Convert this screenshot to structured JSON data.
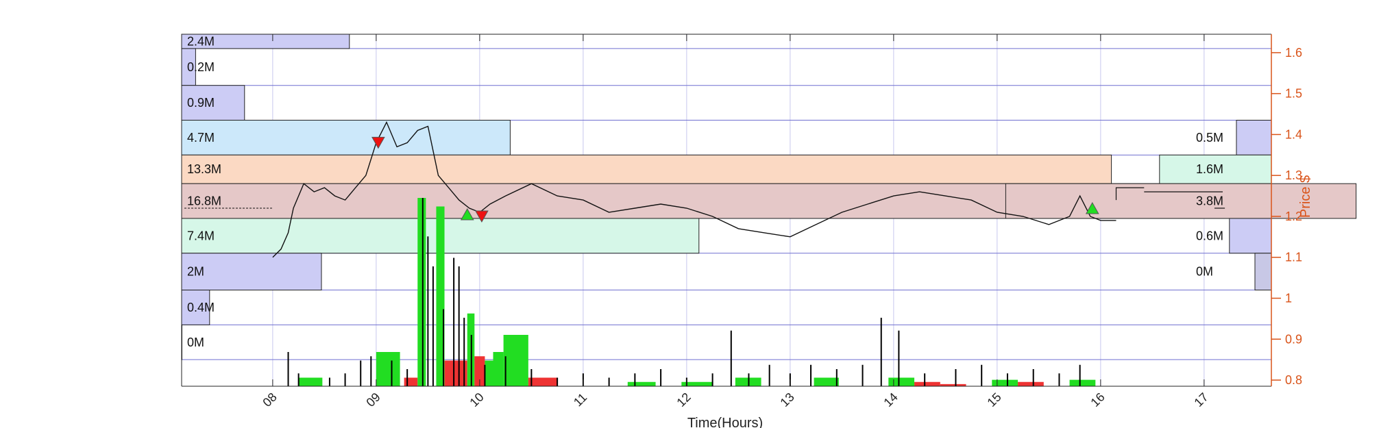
{
  "chart_data": {
    "type": "candlestick-volume-profile",
    "xlabel": "Time(Hours)",
    "ylabel": "Price $",
    "x_range": [
      7.12,
      17.65
    ],
    "y_range": [
      0.785,
      1.645
    ],
    "x_ticks": [
      "08",
      "09",
      "10",
      "11",
      "12",
      "13",
      "14",
      "15",
      "16",
      "17"
    ],
    "y_ticks": [
      "0.8",
      "0.9",
      "1",
      "1.1",
      "1.2",
      "1.3",
      "1.4",
      "1.5",
      "1.6"
    ],
    "colors": {
      "axis_right": "#d95319",
      "grid": "#c7c7ee",
      "band": "#6f6fd0",
      "buy_bar": "#22dd22",
      "sell_bar": "#ee3333",
      "price": "#111111",
      "up_marker": "#22dd22",
      "down_marker": "#ee1111"
    },
    "left_profile": [
      {
        "price_low": 1.61,
        "price_high": 1.645,
        "label": "2.4M",
        "value_m": 2.4,
        "color": "#ccccf5"
      },
      {
        "price_low": 1.52,
        "price_high": 1.61,
        "label": "0.2M",
        "value_m": 0.2,
        "color": "#ccccf5"
      },
      {
        "price_low": 1.435,
        "price_high": 1.52,
        "label": "0.9M",
        "value_m": 0.9,
        "color": "#ccccf5"
      },
      {
        "price_low": 1.35,
        "price_high": 1.435,
        "label": "4.7M",
        "value_m": 4.7,
        "color": "#cce8fa"
      },
      {
        "price_low": 1.28,
        "price_high": 1.35,
        "label": "13.3M",
        "value_m": 13.3,
        "color": "#fbd9c3"
      },
      {
        "price_low": 1.195,
        "price_high": 1.28,
        "label": "16.8M",
        "value_m": 16.8,
        "color": "#e5c8c8"
      },
      {
        "price_low": 1.11,
        "price_high": 1.195,
        "label": "7.4M",
        "value_m": 7.4,
        "color": "#d6f7e8"
      },
      {
        "price_low": 1.02,
        "price_high": 1.11,
        "label": "2M",
        "value_m": 2.0,
        "color": "#ccccf5"
      },
      {
        "price_low": 0.935,
        "price_high": 1.02,
        "label": "0.4M",
        "value_m": 0.4,
        "color": "#ccccf5"
      },
      {
        "price_low": 0.85,
        "price_high": 0.935,
        "label": "0M",
        "value_m": 0.0,
        "color": "#ccccf5"
      }
    ],
    "right_profile": [
      {
        "price_low": 1.35,
        "price_high": 1.435,
        "label": "0.5M",
        "value_m": 0.5,
        "color": "#ccccf5"
      },
      {
        "price_low": 1.28,
        "price_high": 1.35,
        "label": "1.6M",
        "value_m": 1.6,
        "color": "#d6f7e8"
      },
      {
        "price_low": 1.195,
        "price_high": 1.28,
        "label": "3.8M",
        "value_m": 3.8,
        "color": "#e5c8c8"
      },
      {
        "price_low": 1.11,
        "price_high": 1.195,
        "label": "0.6M",
        "value_m": 0.6,
        "color": "#ccccf5"
      },
      {
        "price_low": 1.02,
        "price_high": 1.11,
        "label": "0M",
        "value_m": 0.0,
        "color": "#c8c8e6"
      }
    ],
    "band_edges": [
      1.61,
      1.52,
      1.435,
      1.35,
      1.28,
      1.195,
      1.11,
      1.02,
      0.935,
      0.85
    ],
    "price_series": {
      "name": "price",
      "points": [
        [
          8.0,
          1.1
        ],
        [
          8.08,
          1.12
        ],
        [
          8.15,
          1.16
        ],
        [
          8.2,
          1.22
        ],
        [
          8.3,
          1.28
        ],
        [
          8.4,
          1.26
        ],
        [
          8.5,
          1.27
        ],
        [
          8.6,
          1.25
        ],
        [
          8.7,
          1.24
        ],
        [
          8.8,
          1.27
        ],
        [
          8.9,
          1.3
        ],
        [
          9.0,
          1.38
        ],
        [
          9.1,
          1.43
        ],
        [
          9.2,
          1.37
        ],
        [
          9.3,
          1.38
        ],
        [
          9.4,
          1.41
        ],
        [
          9.5,
          1.42
        ],
        [
          9.6,
          1.3
        ],
        [
          9.7,
          1.27
        ],
        [
          9.8,
          1.24
        ],
        [
          9.9,
          1.22
        ],
        [
          10.0,
          1.21
        ],
        [
          10.1,
          1.23
        ],
        [
          10.25,
          1.25
        ],
        [
          10.5,
          1.28
        ],
        [
          10.75,
          1.25
        ],
        [
          11.0,
          1.24
        ],
        [
          11.25,
          1.21
        ],
        [
          11.5,
          1.22
        ],
        [
          11.75,
          1.23
        ],
        [
          12.0,
          1.22
        ],
        [
          12.25,
          1.2
        ],
        [
          12.5,
          1.17
        ],
        [
          12.75,
          1.16
        ],
        [
          13.0,
          1.15
        ],
        [
          13.25,
          1.18
        ],
        [
          13.5,
          1.21
        ],
        [
          13.75,
          1.23
        ],
        [
          14.0,
          1.25
        ],
        [
          14.25,
          1.26
        ],
        [
          14.5,
          1.25
        ],
        [
          14.75,
          1.24
        ],
        [
          15.0,
          1.21
        ],
        [
          15.25,
          1.2
        ],
        [
          15.5,
          1.18
        ],
        [
          15.7,
          1.2
        ],
        [
          15.8,
          1.25
        ],
        [
          15.9,
          1.2
        ],
        [
          16.0,
          1.19
        ],
        [
          16.15,
          1.19
        ]
      ],
      "extra_segments": [
        [
          [
            16.15,
            1.24
          ],
          [
            16.15,
            1.27
          ],
          [
            16.42,
            1.27
          ]
        ],
        [
          [
            16.42,
            1.26
          ],
          [
            17.18,
            1.26
          ]
        ],
        [
          [
            17.1,
            1.22
          ],
          [
            17.2,
            1.22
          ]
        ]
      ]
    },
    "markers": [
      {
        "time": 9.02,
        "price": 1.38,
        "direction": "down"
      },
      {
        "time": 9.88,
        "price": 1.205,
        "direction": "up"
      },
      {
        "time": 10.02,
        "price": 1.2,
        "direction": "down"
      },
      {
        "time": 15.92,
        "price": 1.22,
        "direction": "up"
      }
    ],
    "volume_blocks": [
      {
        "time_start": 8.25,
        "time_end": 8.48,
        "height": 0.02,
        "side": "buy"
      },
      {
        "time_start": 9.0,
        "time_end": 9.23,
        "height": 0.08,
        "side": "buy"
      },
      {
        "time_start": 9.27,
        "time_end": 9.4,
        "height": 0.02,
        "side": "sell"
      },
      {
        "time_start": 9.4,
        "time_end": 9.48,
        "height": 0.44,
        "side": "buy"
      },
      {
        "time_start": 9.58,
        "time_end": 9.66,
        "height": 0.42,
        "side": "buy"
      },
      {
        "time_start": 9.66,
        "time_end": 9.88,
        "height": 0.06,
        "side": "sell"
      },
      {
        "time_start": 9.88,
        "time_end": 9.95,
        "height": 0.17,
        "side": "buy"
      },
      {
        "time_start": 9.95,
        "time_end": 10.05,
        "height": 0.07,
        "side": "sell"
      },
      {
        "time_start": 10.05,
        "time_end": 10.13,
        "height": 0.06,
        "side": "buy"
      },
      {
        "time_start": 10.13,
        "time_end": 10.23,
        "height": 0.08,
        "side": "buy"
      },
      {
        "time_start": 10.23,
        "time_end": 10.47,
        "height": 0.12,
        "side": "buy"
      },
      {
        "time_start": 10.47,
        "time_end": 10.75,
        "height": 0.02,
        "side": "sell"
      },
      {
        "time_start": 11.43,
        "time_end": 11.7,
        "height": 0.01,
        "side": "buy"
      },
      {
        "time_start": 11.95,
        "time_end": 12.25,
        "height": 0.01,
        "side": "buy"
      },
      {
        "time_start": 12.47,
        "time_end": 12.72,
        "height": 0.02,
        "side": "buy"
      },
      {
        "time_start": 13.23,
        "time_end": 13.47,
        "height": 0.02,
        "side": "buy"
      },
      {
        "time_start": 13.95,
        "time_end": 14.2,
        "height": 0.02,
        "side": "buy"
      },
      {
        "time_start": 14.2,
        "time_end": 14.45,
        "height": 0.01,
        "side": "sell"
      },
      {
        "time_start": 14.45,
        "time_end": 14.7,
        "height": 0.005,
        "side": "sell"
      },
      {
        "time_start": 14.95,
        "time_end": 15.2,
        "height": 0.015,
        "side": "buy"
      },
      {
        "time_start": 15.2,
        "time_end": 15.45,
        "height": 0.01,
        "side": "sell"
      },
      {
        "time_start": 15.7,
        "time_end": 15.95,
        "height": 0.015,
        "side": "buy"
      }
    ],
    "volume_spikes": [
      [
        8.15,
        0.08
      ],
      [
        8.25,
        0.03
      ],
      [
        8.55,
        0.02
      ],
      [
        8.7,
        0.03
      ],
      [
        8.85,
        0.06
      ],
      [
        8.95,
        0.07
      ],
      [
        9.15,
        0.06
      ],
      [
        9.3,
        0.04
      ],
      [
        9.45,
        0.44
      ],
      [
        9.5,
        0.35
      ],
      [
        9.55,
        0.28
      ],
      [
        9.65,
        0.18
      ],
      [
        9.75,
        0.3
      ],
      [
        9.8,
        0.28
      ],
      [
        9.85,
        0.16
      ],
      [
        9.92,
        0.12
      ],
      [
        10.05,
        0.05
      ],
      [
        10.25,
        0.07
      ],
      [
        10.5,
        0.04
      ],
      [
        10.75,
        0.02
      ],
      [
        11.0,
        0.03
      ],
      [
        11.25,
        0.02
      ],
      [
        11.5,
        0.03
      ],
      [
        11.75,
        0.04
      ],
      [
        12.0,
        0.02
      ],
      [
        12.25,
        0.03
      ],
      [
        12.43,
        0.13
      ],
      [
        12.6,
        0.03
      ],
      [
        12.8,
        0.05
      ],
      [
        13.0,
        0.03
      ],
      [
        13.2,
        0.05
      ],
      [
        13.45,
        0.04
      ],
      [
        13.7,
        0.05
      ],
      [
        13.88,
        0.16
      ],
      [
        14.05,
        0.13
      ],
      [
        14.3,
        0.03
      ],
      [
        14.6,
        0.04
      ],
      [
        14.85,
        0.05
      ],
      [
        15.1,
        0.03
      ],
      [
        15.35,
        0.04
      ],
      [
        15.6,
        0.03
      ],
      [
        15.8,
        0.05
      ]
    ],
    "volume_max_height": 0.44,
    "grid": true
  }
}
